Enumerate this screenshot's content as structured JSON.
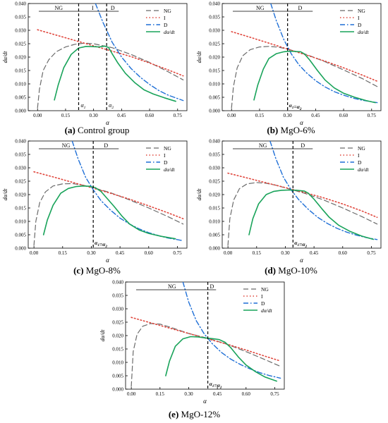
{
  "colors": {
    "NG": "#6b6b6b",
    "I": "#e0463c",
    "D": "#1f6fd6",
    "rate": "#19a35a",
    "axis": "#000000"
  },
  "chart_data": [
    {
      "type": "line",
      "panel_label": "(a)",
      "caption": "Control group",
      "xlabel": "α",
      "ylabel": "dα/dt",
      "xlim": [
        -0.05,
        0.8
      ],
      "ylim": [
        0,
        0.04
      ],
      "xticks": [
        "0.00",
        "0.15",
        "0.30",
        "0.45",
        "0.60",
        "0.75"
      ],
      "yticks": [
        "0.000",
        "0.005",
        "0.010",
        "0.015",
        "0.020",
        "0.025",
        "0.030",
        "0.035",
        "0.040"
      ],
      "legend": [
        "NG",
        "I",
        "D",
        "dα/dt"
      ],
      "stage_labels": [
        "NG",
        "I",
        "D"
      ],
      "vlines": [
        {
          "x": 0.22,
          "label": "α1"
        },
        {
          "x": 0.37,
          "label": "α2"
        }
      ],
      "series": [
        {
          "name": "NG",
          "x": [
            0.0,
            0.01,
            0.03,
            0.06,
            0.1,
            0.15,
            0.2,
            0.25,
            0.3,
            0.4,
            0.5,
            0.6,
            0.7,
            0.78
          ],
          "y": [
            0.001,
            0.008,
            0.015,
            0.019,
            0.022,
            0.0238,
            0.0248,
            0.0252,
            0.025,
            0.0235,
            0.021,
            0.018,
            0.0145,
            0.0115
          ]
        },
        {
          "name": "I",
          "x": [
            0.0,
            0.1,
            0.2,
            0.3,
            0.4,
            0.5,
            0.6,
            0.7,
            0.78
          ],
          "y": [
            0.0302,
            0.0282,
            0.0262,
            0.0242,
            0.0222,
            0.0202,
            0.0178,
            0.0152,
            0.013
          ]
        },
        {
          "name": "D",
          "x": [
            0.31,
            0.35,
            0.4,
            0.45,
            0.5,
            0.55,
            0.6,
            0.65,
            0.7,
            0.78
          ],
          "y": [
            0.04,
            0.033,
            0.0255,
            0.02,
            0.0158,
            0.0125,
            0.0098,
            0.0075,
            0.0058,
            0.0038
          ]
        },
        {
          "name": "dα/dt",
          "x": [
            0.09,
            0.11,
            0.14,
            0.18,
            0.22,
            0.26,
            0.3,
            0.33,
            0.36,
            0.38,
            0.4,
            0.43,
            0.47,
            0.52,
            0.57,
            0.62,
            0.68,
            0.74
          ],
          "y": [
            0.004,
            0.0095,
            0.016,
            0.021,
            0.0234,
            0.024,
            0.0239,
            0.0238,
            0.0241,
            0.0236,
            0.0212,
            0.0178,
            0.014,
            0.0105,
            0.0078,
            0.0062,
            0.0048,
            0.0035
          ]
        }
      ]
    },
    {
      "type": "line",
      "panel_label": "(b)",
      "caption": "MgO-6%",
      "xlabel": "α",
      "ylabel": "dα/dt",
      "xlim": [
        -0.05,
        0.8
      ],
      "ylim": [
        0,
        0.04
      ],
      "xticks": [
        "0.00",
        "0.15",
        "0.30",
        "0.45",
        "0.60",
        "0.75"
      ],
      "yticks": [
        "0.000",
        "0.005",
        "0.010",
        "0.015",
        "0.020",
        "0.025",
        "0.030",
        "0.035",
        "0.040"
      ],
      "legend": [
        "NG",
        "I",
        "D",
        "dα/dt"
      ],
      "stage_labels": [
        "NG",
        "D"
      ],
      "vlines": [
        {
          "x": 0.3,
          "label": "α1=α2"
        }
      ],
      "series": [
        {
          "name": "NG",
          "x": [
            0.0,
            0.01,
            0.03,
            0.06,
            0.1,
            0.15,
            0.2,
            0.25,
            0.3,
            0.4,
            0.5,
            0.6,
            0.7,
            0.78
          ],
          "y": [
            0.001,
            0.009,
            0.016,
            0.0205,
            0.0228,
            0.0238,
            0.024,
            0.0237,
            0.023,
            0.021,
            0.0183,
            0.0152,
            0.012,
            0.009
          ]
        },
        {
          "name": "I",
          "x": [
            0.0,
            0.1,
            0.2,
            0.3,
            0.4,
            0.5,
            0.6,
            0.7,
            0.78
          ],
          "y": [
            0.0295,
            0.0274,
            0.0252,
            0.023,
            0.0208,
            0.0185,
            0.016,
            0.0133,
            0.011
          ]
        },
        {
          "name": "D",
          "x": [
            0.21,
            0.24,
            0.28,
            0.32,
            0.36,
            0.4,
            0.45,
            0.5,
            0.55,
            0.6,
            0.65,
            0.7,
            0.78
          ],
          "y": [
            0.04,
            0.0335,
            0.0265,
            0.0212,
            0.0172,
            0.0142,
            0.0112,
            0.0089,
            0.0071,
            0.0058,
            0.0047,
            0.0039,
            0.003
          ]
        },
        {
          "name": "dα/dt",
          "x": [
            0.12,
            0.14,
            0.17,
            0.2,
            0.24,
            0.28,
            0.31,
            0.34,
            0.37,
            0.39,
            0.42,
            0.46,
            0.5,
            0.55,
            0.6,
            0.66,
            0.72,
            0.77
          ],
          "y": [
            0.004,
            0.0095,
            0.0155,
            0.0195,
            0.0213,
            0.022,
            0.0222,
            0.0221,
            0.022,
            0.0212,
            0.0188,
            0.015,
            0.0115,
            0.0085,
            0.0065,
            0.005,
            0.0038,
            0.003
          ]
        }
      ]
    },
    {
      "type": "line",
      "panel_label": "(c)",
      "caption": "MgO-8%",
      "xlabel": "α",
      "ylabel": "dα/dt",
      "xlim": [
        -0.03,
        0.8
      ],
      "ylim": [
        0,
        0.04
      ],
      "xticks": [
        "0.00",
        "0.15",
        "0.30",
        "0.45",
        "0.60",
        "0.75"
      ],
      "yticks": [
        "0.000",
        "0.005",
        "0.010",
        "0.015",
        "0.020",
        "0.025",
        "0.030",
        "0.035",
        "0.040"
      ],
      "legend": [
        "NG",
        "I",
        "D",
        "dα/dt"
      ],
      "stage_labels": [
        "NG",
        "D"
      ],
      "vlines": [
        {
          "x": 0.31,
          "label": "α1=α2"
        }
      ],
      "series": [
        {
          "name": "NG",
          "x": [
            0.0,
            0.01,
            0.03,
            0.06,
            0.1,
            0.15,
            0.2,
            0.25,
            0.3,
            0.4,
            0.5,
            0.6,
            0.7,
            0.78
          ],
          "y": [
            0.001,
            0.01,
            0.017,
            0.021,
            0.0232,
            0.024,
            0.0241,
            0.0236,
            0.0228,
            0.0207,
            0.018,
            0.015,
            0.0118,
            0.009
          ]
        },
        {
          "name": "I",
          "x": [
            0.0,
            0.1,
            0.2,
            0.3,
            0.4,
            0.5,
            0.6,
            0.7,
            0.78
          ],
          "y": [
            0.0285,
            0.0266,
            0.0246,
            0.0226,
            0.0205,
            0.0183,
            0.0158,
            0.0132,
            0.011
          ]
        },
        {
          "name": "D",
          "x": [
            0.2,
            0.23,
            0.27,
            0.31,
            0.35,
            0.4,
            0.45,
            0.5,
            0.55,
            0.6,
            0.65,
            0.7,
            0.78
          ],
          "y": [
            0.04,
            0.0335,
            0.0265,
            0.0218,
            0.0178,
            0.0142,
            0.0112,
            0.009,
            0.0072,
            0.0058,
            0.0047,
            0.0038,
            0.0028
          ]
        },
        {
          "name": "dα/dt",
          "x": [
            0.05,
            0.07,
            0.1,
            0.14,
            0.18,
            0.22,
            0.26,
            0.29,
            0.32,
            0.35,
            0.38,
            0.42,
            0.46,
            0.5,
            0.55,
            0.6,
            0.66,
            0.74
          ],
          "y": [
            0.005,
            0.0105,
            0.016,
            0.0205,
            0.0223,
            0.023,
            0.0232,
            0.0231,
            0.0226,
            0.0212,
            0.0188,
            0.0155,
            0.012,
            0.009,
            0.0068,
            0.0055,
            0.0045,
            0.0035
          ]
        }
      ]
    },
    {
      "type": "line",
      "panel_label": "(d)",
      "caption": "MgO-10%",
      "xlabel": "α",
      "ylabel": "dα/dt",
      "xlim": [
        -0.03,
        0.8
      ],
      "ylim": [
        0,
        0.04
      ],
      "xticks": [
        "0.00",
        "0.15",
        "0.30",
        "0.45",
        "0.60",
        "0.75"
      ],
      "yticks": [
        "0.000",
        "0.005",
        "0.010",
        "0.015",
        "0.020",
        "0.025",
        "0.030",
        "0.035",
        "0.040"
      ],
      "legend": [
        "NG",
        "I",
        "D",
        "dα/dt"
      ],
      "stage_labels": [
        "NG",
        "D"
      ],
      "vlines": [
        {
          "x": 0.34,
          "label": "α1=α2"
        }
      ],
      "series": [
        {
          "name": "NG",
          "x": [
            0.0,
            0.01,
            0.03,
            0.06,
            0.1,
            0.15,
            0.2,
            0.25,
            0.3,
            0.4,
            0.5,
            0.6,
            0.7,
            0.78
          ],
          "y": [
            0.001,
            0.011,
            0.018,
            0.0222,
            0.024,
            0.0245,
            0.0242,
            0.0235,
            0.0225,
            0.0205,
            0.018,
            0.015,
            0.0118,
            0.009
          ]
        },
        {
          "name": "I",
          "x": [
            0.0,
            0.1,
            0.2,
            0.3,
            0.4,
            0.5,
            0.6,
            0.7,
            0.78
          ],
          "y": [
            0.028,
            0.0262,
            0.0244,
            0.0226,
            0.0208,
            0.0188,
            0.0165,
            0.0139,
            0.0115
          ]
        },
        {
          "name": "D",
          "x": [
            0.22,
            0.25,
            0.29,
            0.33,
            0.37,
            0.42,
            0.47,
            0.52,
            0.57,
            0.62,
            0.67,
            0.72,
            0.78
          ],
          "y": [
            0.04,
            0.0335,
            0.0265,
            0.0218,
            0.0181,
            0.0145,
            0.0115,
            0.0092,
            0.0074,
            0.006,
            0.0049,
            0.004,
            0.0032
          ]
        },
        {
          "name": "dα/dt",
          "x": [
            0.11,
            0.13,
            0.16,
            0.2,
            0.24,
            0.28,
            0.32,
            0.36,
            0.4,
            0.42,
            0.45,
            0.49,
            0.53,
            0.58,
            0.64,
            0.7,
            0.76
          ],
          "y": [
            0.005,
            0.011,
            0.0165,
            0.02,
            0.0212,
            0.0216,
            0.0217,
            0.0216,
            0.0213,
            0.0205,
            0.0183,
            0.0148,
            0.0115,
            0.0085,
            0.0062,
            0.0045,
            0.0033
          ]
        }
      ]
    },
    {
      "type": "line",
      "panel_label": "(e)",
      "caption": "MgO-12%",
      "xlabel": "α",
      "ylabel": "dα/dt",
      "xlim": [
        -0.03,
        0.8
      ],
      "ylim": [
        0,
        0.04
      ],
      "xticks": [
        "0.00",
        "0.15",
        "0.30",
        "0.45",
        "0.60",
        "0.75"
      ],
      "yticks": [
        "0.000",
        "0.005",
        "0.010",
        "0.015",
        "0.020",
        "0.025",
        "0.030",
        "0.035",
        "0.040"
      ],
      "legend": [
        "NG",
        "I",
        "D",
        "dα/dt"
      ],
      "stage_labels": [
        "NG",
        "D"
      ],
      "vlines": [
        {
          "x": 0.4,
          "label": "α1=α2"
        }
      ],
      "series": [
        {
          "name": "NG",
          "x": [
            0.0,
            0.01,
            0.03,
            0.06,
            0.1,
            0.15,
            0.2,
            0.25,
            0.3,
            0.4,
            0.5,
            0.6,
            0.7,
            0.78
          ],
          "y": [
            0.001,
            0.014,
            0.0205,
            0.0235,
            0.0245,
            0.0243,
            0.0232,
            0.022,
            0.0208,
            0.019,
            0.0168,
            0.014,
            0.011,
            0.0085
          ]
        },
        {
          "name": "I",
          "x": [
            0.0,
            0.1,
            0.2,
            0.3,
            0.4,
            0.5,
            0.6,
            0.7,
            0.78
          ],
          "y": [
            0.0268,
            0.0248,
            0.0228,
            0.0208,
            0.0188,
            0.0168,
            0.0146,
            0.0123,
            0.0105
          ]
        },
        {
          "name": "D",
          "x": [
            0.27,
            0.3,
            0.34,
            0.38,
            0.42,
            0.47,
            0.52,
            0.57,
            0.62,
            0.67,
            0.72,
            0.78
          ],
          "y": [
            0.04,
            0.0325,
            0.0255,
            0.0208,
            0.0172,
            0.0138,
            0.0112,
            0.0092,
            0.0076,
            0.0062,
            0.0051,
            0.0041
          ]
        },
        {
          "name": "dα/dt",
          "x": [
            0.18,
            0.2,
            0.23,
            0.27,
            0.31,
            0.35,
            0.39,
            0.43,
            0.46,
            0.49,
            0.52,
            0.56,
            0.6,
            0.65,
            0.7,
            0.76
          ],
          "y": [
            0.005,
            0.0105,
            0.016,
            0.0188,
            0.0196,
            0.0195,
            0.0191,
            0.0188,
            0.0185,
            0.0175,
            0.0155,
            0.012,
            0.009,
            0.0065,
            0.0045,
            0.003
          ]
        }
      ]
    }
  ]
}
